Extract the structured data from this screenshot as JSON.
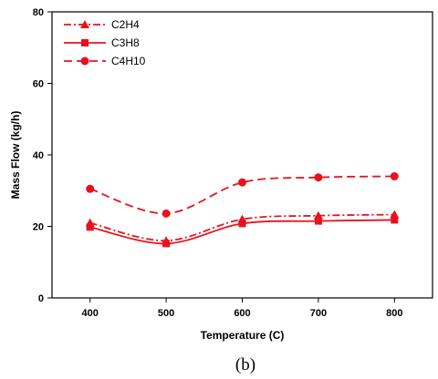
{
  "chart_data": {
    "type": "line",
    "xlabel": "Temperature (C)",
    "ylabel": "Mass Flow (kg/h)",
    "caption": "(b)",
    "x": [
      400,
      500,
      600,
      700,
      800
    ],
    "xlim": [
      350,
      850
    ],
    "ylim": [
      0,
      80
    ],
    "xticks": [
      400,
      500,
      600,
      700,
      800
    ],
    "yticks": [
      0,
      20,
      40,
      60,
      80
    ],
    "grid": false,
    "legend_position": "top-left",
    "series": [
      {
        "name": "C2H4",
        "marker": "triangle",
        "dash": "dash-dot",
        "color": "#e8121f",
        "values": [
          21,
          16,
          22,
          23,
          23.3
        ]
      },
      {
        "name": "C3H8",
        "marker": "square",
        "dash": "solid",
        "color": "#e8121f",
        "values": [
          19.8,
          15.2,
          20.8,
          21.5,
          21.8
        ]
      },
      {
        "name": "C4H10",
        "marker": "circle",
        "dash": "dash",
        "color": "#e8121f",
        "values": [
          30.5,
          23.6,
          32.3,
          33.7,
          34
        ]
      }
    ]
  }
}
